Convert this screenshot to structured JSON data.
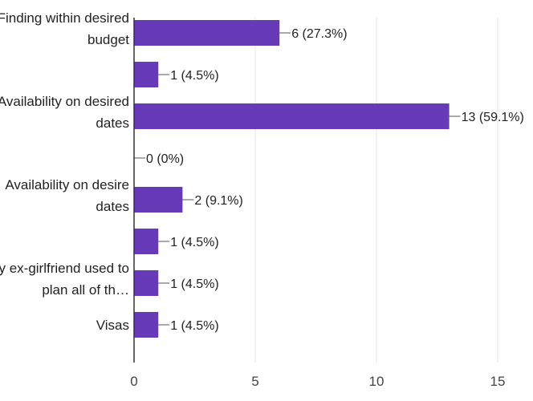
{
  "chart_data": {
    "type": "bar",
    "orientation": "horizontal",
    "categories": [
      [
        "Finding within desired",
        "budget"
      ],
      [],
      [
        "Availability on desired",
        "dates"
      ],
      [],
      [
        "Availability on desire",
        "dates"
      ],
      [],
      [
        "My ex-girlfriend used to",
        "plan all of th…"
      ],
      [
        "Visas"
      ]
    ],
    "values": [
      6,
      1,
      13,
      0,
      2,
      1,
      1,
      1
    ],
    "data_labels": [
      "6 (27.3%)",
      "1 (4.5%)",
      "13 (59.1%)",
      "0 (0%)",
      "2 (9.1%)",
      "1 (4.5%)",
      "1 (4.5%)",
      "1 (4.5%)"
    ],
    "xlim": [
      0,
      15
    ],
    "xticks": [
      "0",
      "5",
      "10",
      "15"
    ],
    "grid": true,
    "colors": {
      "bar": "#673ab7"
    }
  }
}
